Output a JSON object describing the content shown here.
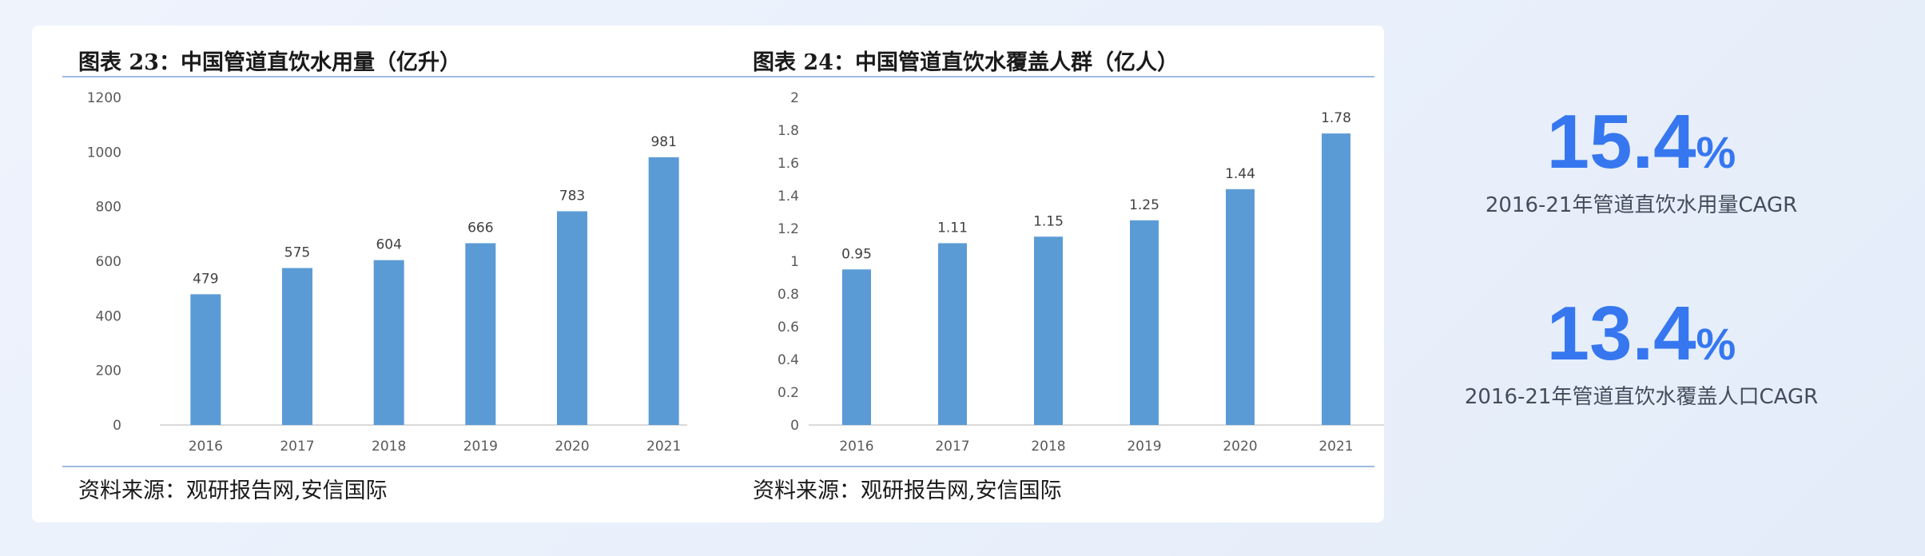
{
  "colors": {
    "bar": "#5b9bd5",
    "accent": "#3677f0",
    "rule": "#9dbbe0"
  },
  "chart_data": [
    {
      "type": "bar",
      "title": "图表 23：中国管道直饮水用量（亿升）",
      "source": "资料来源：观研报告网,安信国际",
      "categories": [
        "2016",
        "2017",
        "2018",
        "2019",
        "2020",
        "2021"
      ],
      "values": [
        479,
        575,
        604,
        666,
        783,
        981
      ],
      "data_labels": [
        "479",
        "575",
        "604",
        "666",
        "783",
        "981"
      ],
      "yticks": [
        "0",
        "200",
        "400",
        "600",
        "800",
        "1000",
        "1200"
      ],
      "ylim": [
        0,
        1200
      ],
      "xlabel": "",
      "ylabel": "",
      "grid": false,
      "legend": "none"
    },
    {
      "type": "bar",
      "title": "图表 24：中国管道直饮水覆盖人群（亿人）",
      "source": "资料来源：观研报告网,安信国际",
      "categories": [
        "2016",
        "2017",
        "2018",
        "2019",
        "2020",
        "2021"
      ],
      "values": [
        0.95,
        1.11,
        1.15,
        1.25,
        1.44,
        1.78
      ],
      "data_labels": [
        "0.95",
        "1.11",
        "1.15",
        "1.25",
        "1.44",
        "1.78"
      ],
      "yticks": [
        "0",
        "0.2",
        "0.4",
        "0.6",
        "0.8",
        "1",
        "1.2",
        "1.4",
        "1.6",
        "1.8",
        "2"
      ],
      "ylim": [
        0,
        2
      ],
      "xlabel": "",
      "ylabel": "",
      "grid": false,
      "legend": "none"
    }
  ],
  "stats": [
    {
      "value": "15.4",
      "unit": "%",
      "label": "2016-21年管道直饮水用量CAGR"
    },
    {
      "value": "13.4",
      "unit": "%",
      "label": "2016-21年管道直饮水覆盖人口CAGR"
    }
  ]
}
